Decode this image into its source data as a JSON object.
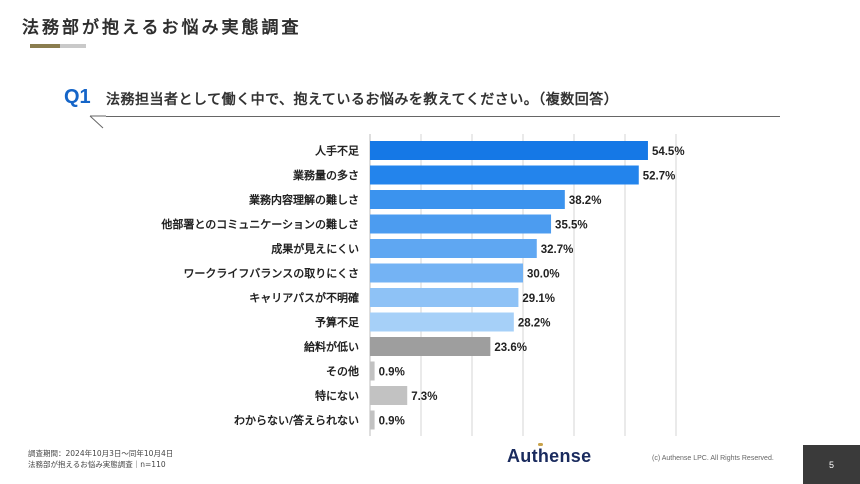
{
  "page": {
    "title": "法務部が抱えるお悩み実態調査"
  },
  "question": {
    "label": "Q1",
    "text": "法務担当者として働く中で、抱えているお悩みを教えてください。（複数回答）"
  },
  "chart_data": {
    "type": "bar",
    "orientation": "horizontal",
    "unit": "%",
    "xlim": [
      0,
      60
    ],
    "grid": true,
    "categories": [
      "人手不足",
      "業務量の多さ",
      "業務内容理解の難しさ",
      "他部署とのコミュニケーションの難しさ",
      "成果が見えにくい",
      "ワークライフバランスの取りにくさ",
      "キャリアパスが不明確",
      "予算不足",
      "給料が低い",
      "その他",
      "特にない",
      "わからない/答えられない"
    ],
    "values": [
      54.5,
      52.7,
      38.2,
      35.5,
      32.7,
      30.0,
      29.1,
      28.2,
      23.6,
      0.9,
      7.3,
      0.9
    ],
    "value_labels": [
      "54.5%",
      "52.7%",
      "38.2%",
      "35.5%",
      "32.7%",
      "30.0%",
      "29.1%",
      "28.2%",
      "23.6%",
      "0.9%",
      "7.3%",
      "0.9%"
    ],
    "bar_colors": [
      "#1578e6",
      "#2384ec",
      "#3b93ee",
      "#4c9cf0",
      "#5fa7f2",
      "#74b3f4",
      "#8ec2f6",
      "#a6d0f8",
      "#9e9e9e",
      "#c2c2c2",
      "#c2c2c2",
      "#c2c2c2"
    ]
  },
  "footer": {
    "survey_period": "調査期間：2024年10月3日〜同年10月4日",
    "survey_name": "法務部が抱えるお悩み実態調査｜n=110",
    "logo": "Authense",
    "copyright": "(c) Authense LPC. All Rights Reserved.",
    "page_number": "5"
  }
}
